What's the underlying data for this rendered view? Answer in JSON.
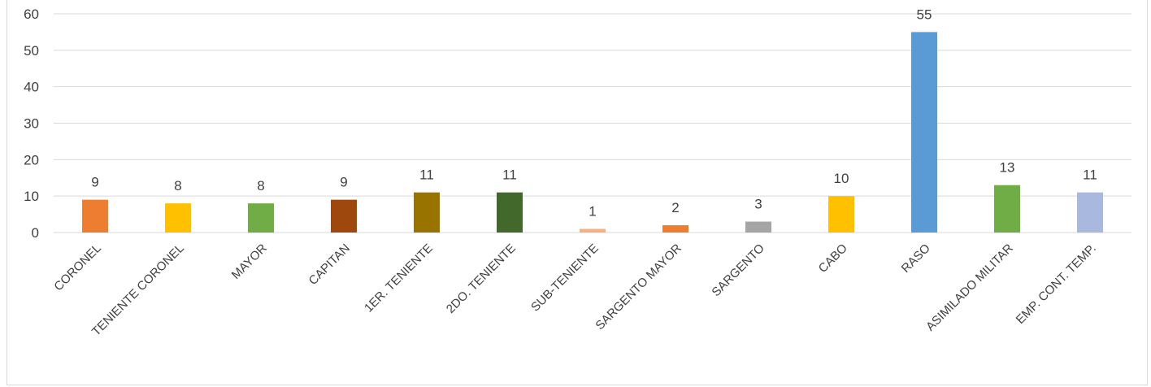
{
  "chart_data": {
    "type": "bar",
    "categories": [
      "CORONEL",
      "TENIENTE CORONEL",
      "MAYOR",
      "CAPITAN",
      "1ER. TENIENTE",
      "2DO. TENIENTE",
      "SUB-TENIENTE",
      "SARGENTO MAYOR",
      "SARGENTO",
      "CABO",
      "RASO",
      "ASIMILADO MILITAR",
      "EMP. CONT. TEMP."
    ],
    "values": [
      9,
      8,
      8,
      9,
      11,
      11,
      1,
      2,
      3,
      10,
      55,
      13,
      11
    ],
    "colors": [
      "#ED7D31",
      "#FFC000",
      "#70AD47",
      "#9E480E",
      "#997300",
      "#43682B",
      "#F4B183",
      "#ED7D31",
      "#A5A5A5",
      "#FFC000",
      "#5B9BD5",
      "#70AD47",
      "#A9B8DE"
    ],
    "yticks": [
      0,
      10,
      20,
      30,
      40,
      50,
      60
    ],
    "ylim": [
      0,
      60
    ],
    "grid": true,
    "data_labels": true,
    "title": "",
    "xlabel": "",
    "ylabel": ""
  }
}
